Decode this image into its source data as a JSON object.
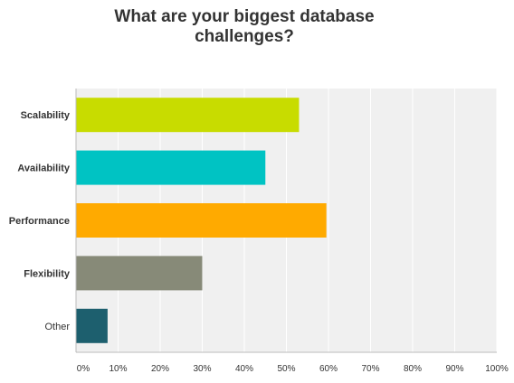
{
  "chart_data": {
    "type": "bar",
    "orientation": "horizontal",
    "title_lines": [
      "What are your biggest database",
      "challenges?"
    ],
    "categories": [
      "Scalability",
      "Availability",
      "Performance",
      "Flexibility",
      "Other"
    ],
    "values": [
      53,
      45,
      59.5,
      30,
      7.5
    ],
    "colors": [
      "#c8dc00",
      "#00c3c3",
      "#ffaa00",
      "#878a78",
      "#1d5f6e"
    ],
    "category_label_weights": [
      "bold",
      "bold",
      "bold",
      "bold",
      "normal"
    ],
    "xlim": [
      0,
      100
    ],
    "x_ticks": [
      "0%",
      "10%",
      "20%",
      "30%",
      "40%",
      "50%",
      "60%",
      "70%",
      "80%",
      "90%",
      "100%"
    ],
    "grid": true,
    "legend": "none",
    "plot_background": "#f0f0f0"
  }
}
